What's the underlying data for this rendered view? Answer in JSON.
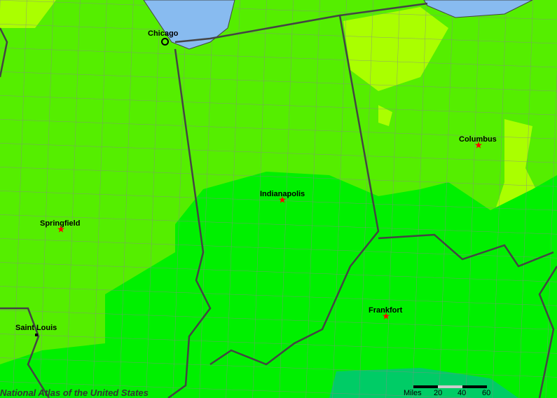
{
  "map": {
    "colors": {
      "light_green": "#55ee00",
      "yellow_green": "#aaff00",
      "bright_green": "#00f000",
      "teal": "#00cc66",
      "water": "#88bbf0",
      "state_border": "#444444",
      "county_border": "#888888"
    },
    "cities": [
      {
        "name": "Chicago",
        "marker": "circle"
      },
      {
        "name": "Indianapolis",
        "marker": "star"
      },
      {
        "name": "Columbus",
        "marker": "star"
      },
      {
        "name": "Springfield",
        "marker": "star"
      },
      {
        "name": "Frankfort",
        "marker": "star"
      },
      {
        "name": "Saint Louis",
        "marker": "dot"
      }
    ],
    "scale": {
      "unit": "Miles",
      "ticks": [
        "20",
        "40",
        "60"
      ]
    },
    "credit": "National Atlas of the United States"
  }
}
